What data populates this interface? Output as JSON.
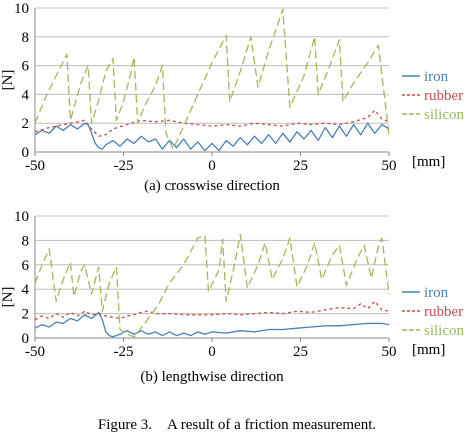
{
  "figure_caption": "Figure 3. A result of a friction measurement.",
  "chart_data": [
    {
      "type": "line",
      "caption": "(a) crosswise direction",
      "ylabel": "[N]",
      "xlabel": "[mm]",
      "xlim": [
        -50,
        50
      ],
      "ylim": [
        0,
        10
      ],
      "xticks": [
        "-50",
        "-25",
        "0",
        "25",
        "50"
      ],
      "yticks": [
        "0",
        "2",
        "4",
        "6",
        "8",
        "10"
      ],
      "grid": true,
      "legend_position": "right",
      "series": [
        {
          "name": "iron",
          "color": "#4a7ebb",
          "dash": "solid",
          "points": [
            [
              -50,
              1.2
            ],
            [
              -48,
              1.5
            ],
            [
              -46,
              1.3
            ],
            [
              -44,
              1.8
            ],
            [
              -42,
              1.5
            ],
            [
              -40,
              1.9
            ],
            [
              -38,
              1.6
            ],
            [
              -36,
              2.0
            ],
            [
              -35,
              1.9
            ],
            [
              -34,
              1.3
            ],
            [
              -33,
              0.6
            ],
            [
              -32,
              0.3
            ],
            [
              -31,
              0.2
            ],
            [
              -30,
              0.5
            ],
            [
              -28,
              0.8
            ],
            [
              -26,
              0.4
            ],
            [
              -24,
              0.9
            ],
            [
              -22,
              0.6
            ],
            [
              -20,
              1.1
            ],
            [
              -18,
              0.7
            ],
            [
              -16,
              0.9
            ],
            [
              -14,
              0.2
            ],
            [
              -12,
              0.8
            ],
            [
              -10,
              0.3
            ],
            [
              -8,
              0.9
            ],
            [
              -6,
              0.2
            ],
            [
              -4,
              0.7
            ],
            [
              -2,
              0.1
            ],
            [
              0,
              0.6
            ],
            [
              2,
              0.1
            ],
            [
              4,
              0.8
            ],
            [
              6,
              0.4
            ],
            [
              8,
              1.0
            ],
            [
              10,
              0.5
            ],
            [
              12,
              1.1
            ],
            [
              14,
              0.6
            ],
            [
              16,
              1.2
            ],
            [
              18,
              0.6
            ],
            [
              20,
              1.3
            ],
            [
              22,
              0.7
            ],
            [
              24,
              1.4
            ],
            [
              26,
              0.9
            ],
            [
              28,
              1.5
            ],
            [
              30,
              0.8
            ],
            [
              32,
              1.7
            ],
            [
              34,
              1.0
            ],
            [
              36,
              1.8
            ],
            [
              38,
              1.1
            ],
            [
              40,
              1.9
            ],
            [
              42,
              1.2
            ],
            [
              44,
              2.0
            ],
            [
              46,
              1.3
            ],
            [
              48,
              1.9
            ],
            [
              50,
              1.6
            ]
          ]
        },
        {
          "name": "rubber",
          "color": "#c0504d",
          "dash": "3,3",
          "points": [
            [
              -50,
              1.4
            ],
            [
              -46,
              1.7
            ],
            [
              -42,
              1.9
            ],
            [
              -38,
              2.1
            ],
            [
              -36,
              2.2
            ],
            [
              -34,
              1.6
            ],
            [
              -32,
              1.1
            ],
            [
              -30,
              1.2
            ],
            [
              -28,
              1.6
            ],
            [
              -24,
              1.9
            ],
            [
              -20,
              2.2
            ],
            [
              -16,
              2.1
            ],
            [
              -12,
              2.2
            ],
            [
              -8,
              2.0
            ],
            [
              -4,
              1.9
            ],
            [
              0,
              1.8
            ],
            [
              4,
              1.9
            ],
            [
              8,
              1.8
            ],
            [
              12,
              2.0
            ],
            [
              16,
              1.9
            ],
            [
              20,
              1.8
            ],
            [
              24,
              2.0
            ],
            [
              28,
              1.9
            ],
            [
              32,
              2.0
            ],
            [
              36,
              1.9
            ],
            [
              40,
              2.1
            ],
            [
              44,
              2.4
            ],
            [
              46,
              2.9
            ],
            [
              48,
              2.3
            ],
            [
              50,
              2.1
            ]
          ]
        },
        {
          "name": "silicon",
          "color": "#9bbb59",
          "dash": "8,4",
          "points": [
            [
              -50,
              2.0
            ],
            [
              -47,
              3.8
            ],
            [
              -43,
              5.8
            ],
            [
              -41,
              6.8
            ],
            [
              -40,
              2.2
            ],
            [
              -37,
              4.8
            ],
            [
              -35,
              6.0
            ],
            [
              -34,
              2.0
            ],
            [
              -32,
              3.6
            ],
            [
              -30,
              5.6
            ],
            [
              -28,
              6.5
            ],
            [
              -27,
              2.2
            ],
            [
              -25,
              3.5
            ],
            [
              -23,
              5.4
            ],
            [
              -22,
              6.6
            ],
            [
              -21,
              2.0
            ],
            [
              -19,
              3.2
            ],
            [
              -16,
              4.6
            ],
            [
              -14,
              6.0
            ],
            [
              -13,
              1.3
            ],
            [
              -11,
              0.2
            ],
            [
              -8,
              1.8
            ],
            [
              -4,
              4.0
            ],
            [
              0,
              6.2
            ],
            [
              4,
              8.1
            ],
            [
              5,
              3.5
            ],
            [
              8,
              5.6
            ],
            [
              11,
              8.0
            ],
            [
              13,
              4.5
            ],
            [
              16,
              7.0
            ],
            [
              20,
              9.9
            ],
            [
              22,
              3.1
            ],
            [
              26,
              5.3
            ],
            [
              29,
              8.0
            ],
            [
              30,
              4.0
            ],
            [
              33,
              5.8
            ],
            [
              36,
              7.8
            ],
            [
              37,
              3.5
            ],
            [
              40,
              4.8
            ],
            [
              44,
              6.2
            ],
            [
              47,
              7.4
            ],
            [
              50,
              1.2
            ]
          ]
        }
      ]
    },
    {
      "type": "line",
      "caption": "(b) lengthwise direction",
      "ylabel": "[N]",
      "xlabel": "[mm]",
      "xlim": [
        -50,
        50
      ],
      "ylim": [
        0,
        10
      ],
      "xticks": [
        "-50",
        "-25",
        "0",
        "25",
        "50"
      ],
      "yticks": [
        "0",
        "2",
        "4",
        "6",
        "8",
        "10"
      ],
      "grid": true,
      "legend_position": "right",
      "series": [
        {
          "name": "iron",
          "color": "#4a7ebb",
          "dash": "solid",
          "points": [
            [
              -50,
              0.8
            ],
            [
              -48,
              1.1
            ],
            [
              -46,
              0.9
            ],
            [
              -44,
              1.3
            ],
            [
              -42,
              1.2
            ],
            [
              -40,
              1.6
            ],
            [
              -38,
              1.4
            ],
            [
              -36,
              1.9
            ],
            [
              -34,
              1.6
            ],
            [
              -32,
              2.1
            ],
            [
              -31,
              1.5
            ],
            [
              -30,
              0.5
            ],
            [
              -29,
              0.2
            ],
            [
              -28,
              0.1
            ],
            [
              -26,
              0.3
            ],
            [
              -24,
              0.6
            ],
            [
              -22,
              0.3
            ],
            [
              -20,
              0.6
            ],
            [
              -18,
              0.3
            ],
            [
              -16,
              0.5
            ],
            [
              -14,
              0.2
            ],
            [
              -12,
              0.5
            ],
            [
              -10,
              0.2
            ],
            [
              -8,
              0.4
            ],
            [
              -6,
              0.2
            ],
            [
              -4,
              0.5
            ],
            [
              -2,
              0.3
            ],
            [
              0,
              0.5
            ],
            [
              4,
              0.4
            ],
            [
              8,
              0.6
            ],
            [
              12,
              0.5
            ],
            [
              16,
              0.7
            ],
            [
              20,
              0.7
            ],
            [
              24,
              0.8
            ],
            [
              28,
              0.9
            ],
            [
              32,
              1.0
            ],
            [
              36,
              1.0
            ],
            [
              40,
              1.1
            ],
            [
              44,
              1.2
            ],
            [
              48,
              1.2
            ],
            [
              50,
              1.1
            ]
          ]
        },
        {
          "name": "rubber",
          "color": "#c0504d",
          "dash": "3,3",
          "points": [
            [
              -50,
              1.5
            ],
            [
              -48,
              1.8
            ],
            [
              -46,
              1.6
            ],
            [
              -44,
              2.0
            ],
            [
              -42,
              1.7
            ],
            [
              -40,
              2.1
            ],
            [
              -38,
              1.8
            ],
            [
              -36,
              2.2
            ],
            [
              -34,
              1.9
            ],
            [
              -32,
              2.0
            ],
            [
              -30,
              1.8
            ],
            [
              -28,
              1.7
            ],
            [
              -26,
              1.6
            ],
            [
              -24,
              1.8
            ],
            [
              -22,
              1.9
            ],
            [
              -20,
              2.1
            ],
            [
              -18,
              2.2
            ],
            [
              -16,
              2.0
            ],
            [
              -12,
              2.0
            ],
            [
              -8,
              1.9
            ],
            [
              -4,
              1.9
            ],
            [
              0,
              1.9
            ],
            [
              4,
              2.0
            ],
            [
              8,
              1.9
            ],
            [
              12,
              2.0
            ],
            [
              16,
              2.1
            ],
            [
              20,
              2.0
            ],
            [
              24,
              2.2
            ],
            [
              28,
              2.1
            ],
            [
              32,
              2.3
            ],
            [
              36,
              2.5
            ],
            [
              40,
              2.4
            ],
            [
              42,
              2.8
            ],
            [
              44,
              2.4
            ],
            [
              46,
              3.0
            ],
            [
              48,
              2.3
            ],
            [
              50,
              2.2
            ]
          ]
        },
        {
          "name": "silicon",
          "color": "#9bbb59",
          "dash": "8,4",
          "points": [
            [
              -50,
              4.5
            ],
            [
              -48,
              6.0
            ],
            [
              -46,
              7.3
            ],
            [
              -44,
              3.0
            ],
            [
              -42,
              4.8
            ],
            [
              -40,
              6.2
            ],
            [
              -39,
              3.4
            ],
            [
              -37,
              5.5
            ],
            [
              -36,
              6.0
            ],
            [
              -34,
              3.6
            ],
            [
              -32,
              5.8
            ],
            [
              -31,
              2.2
            ],
            [
              -29,
              4.5
            ],
            [
              -27,
              5.8
            ],
            [
              -26,
              0.7
            ],
            [
              -24,
              0.3
            ],
            [
              -22,
              0.1
            ],
            [
              -19,
              1.2
            ],
            [
              -15,
              2.8
            ],
            [
              -12,
              4.5
            ],
            [
              -8,
              6.0
            ],
            [
              -4,
              8.2
            ],
            [
              -2,
              8.4
            ],
            [
              -1,
              3.8
            ],
            [
              2,
              5.6
            ],
            [
              3,
              8.1
            ],
            [
              4,
              3.0
            ],
            [
              6,
              5.5
            ],
            [
              8,
              8.5
            ],
            [
              10,
              4.1
            ],
            [
              13,
              6.0
            ],
            [
              15,
              7.8
            ],
            [
              17,
              4.8
            ],
            [
              20,
              6.5
            ],
            [
              22,
              8.2
            ],
            [
              24,
              4.2
            ],
            [
              27,
              6.0
            ],
            [
              29,
              7.8
            ],
            [
              31,
              4.8
            ],
            [
              34,
              6.8
            ],
            [
              36,
              7.6
            ],
            [
              38,
              4.3
            ],
            [
              41,
              6.5
            ],
            [
              43,
              7.6
            ],
            [
              45,
              4.9
            ],
            [
              47,
              7.5
            ],
            [
              48,
              8.2
            ],
            [
              50,
              3.6
            ]
          ]
        }
      ]
    }
  ]
}
